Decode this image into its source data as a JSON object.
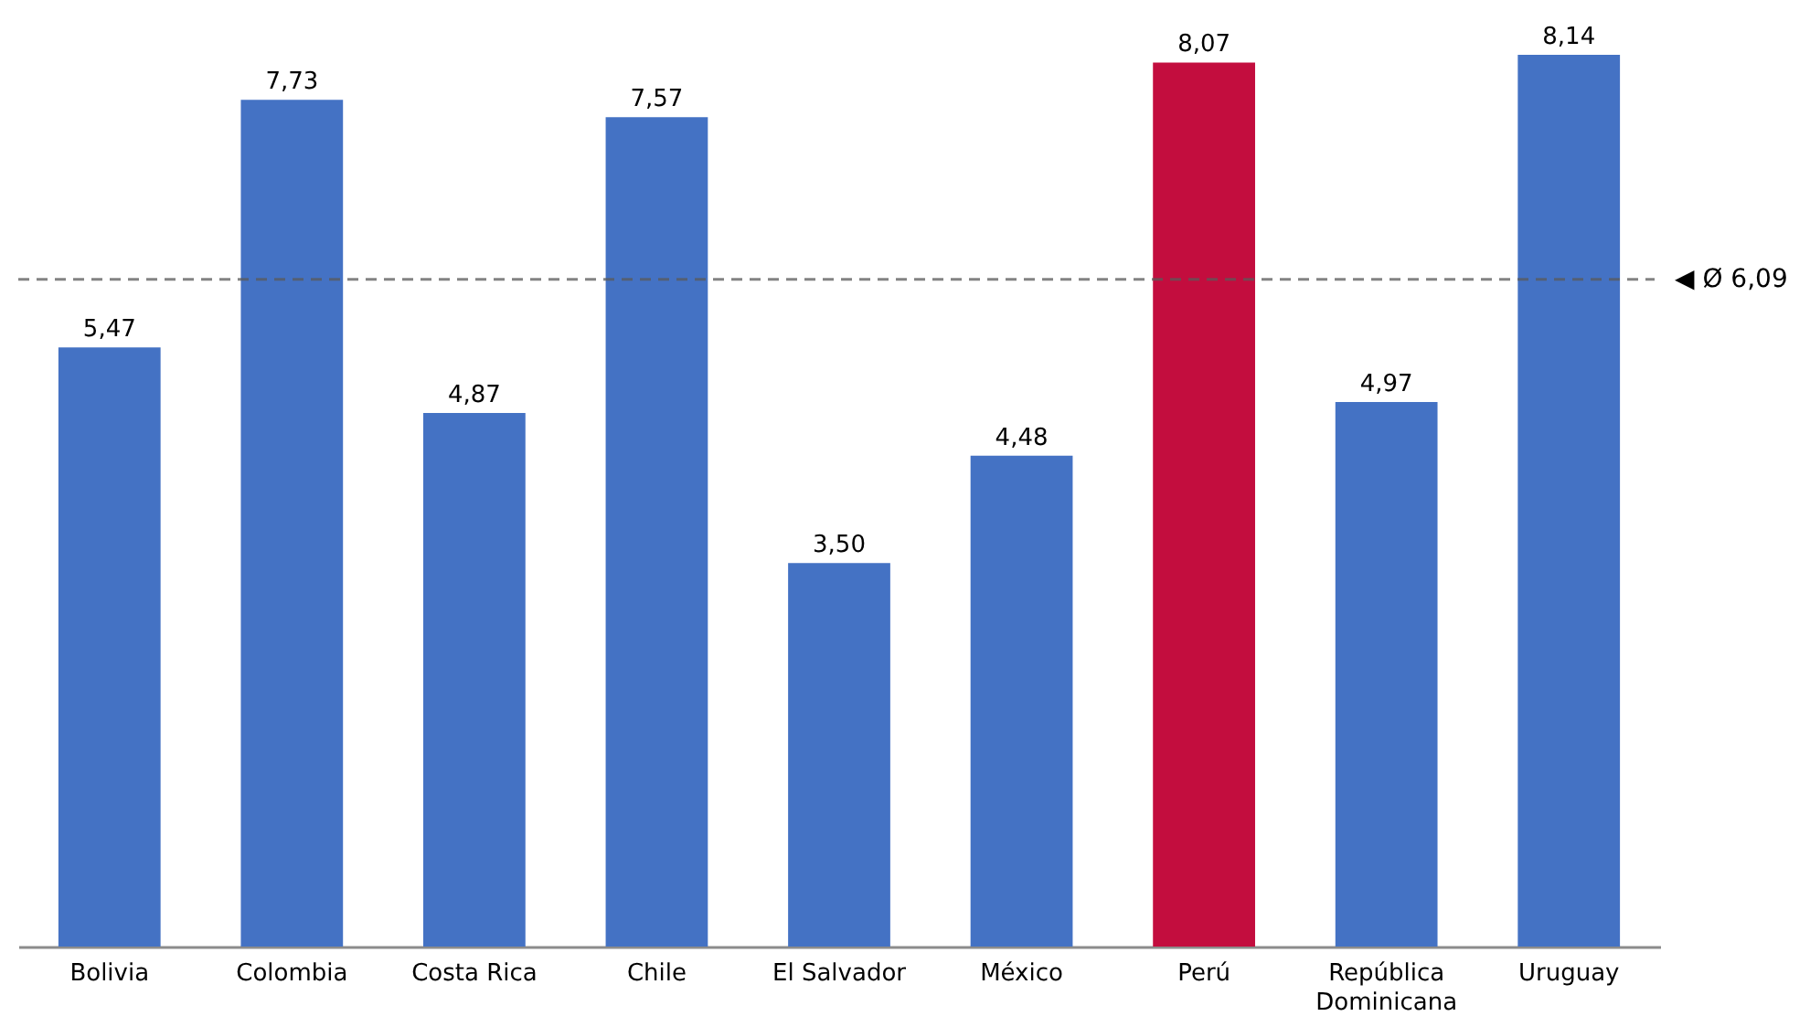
{
  "chart_data": {
    "type": "bar",
    "categories": [
      "Bolivia",
      "Colombia",
      "Costa Rica",
      "Chile",
      "El Salvador",
      "México",
      "Perú",
      "República Dominicana",
      "Uruguay"
    ],
    "values": [
      5.47,
      7.73,
      4.87,
      7.57,
      3.5,
      4.48,
      8.07,
      4.97,
      8.14
    ],
    "colors": [
      "#4472c4",
      "#4472c4",
      "#4472c4",
      "#4472c4",
      "#4472c4",
      "#4472c4",
      "#c30d3e",
      "#4472c4",
      "#4472c4"
    ],
    "value_labels": [
      "5,47",
      "7,73",
      "4,87",
      "7,57",
      "3,50",
      "4,48",
      "8,07",
      "4,97",
      "8,14"
    ],
    "ref_lines": [
      {
        "axis": "y",
        "value": 6.09,
        "label": "◀ Ø 6,09",
        "color": "#595959",
        "line_style": "dashed"
      }
    ]
  }
}
